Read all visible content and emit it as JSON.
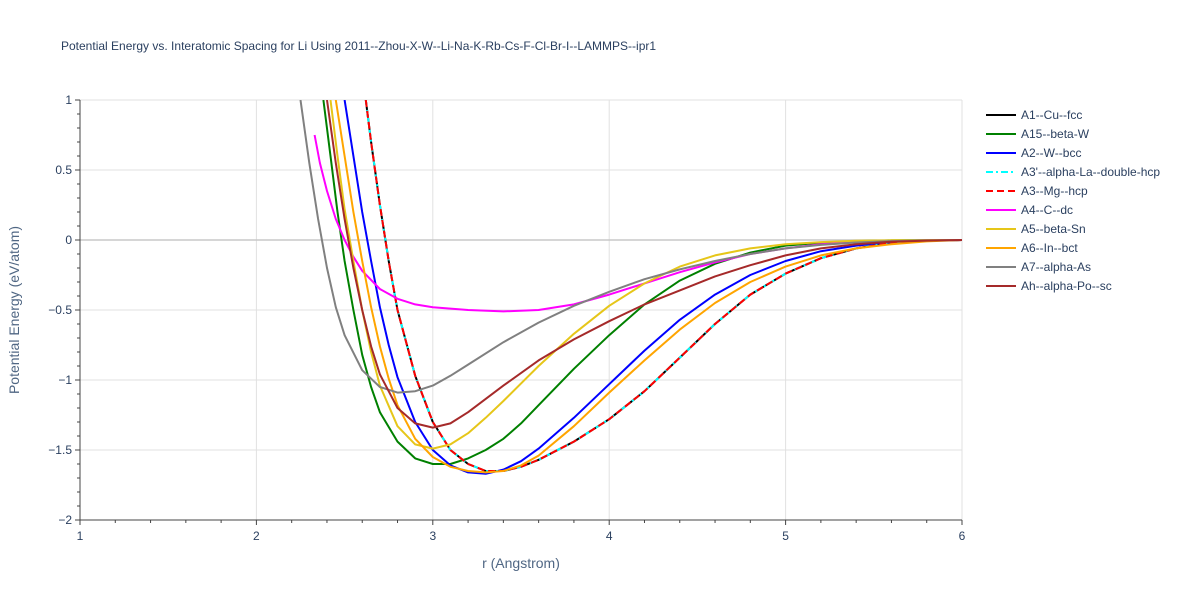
{
  "chart_data": {
    "type": "line",
    "title": "Potential Energy vs. Interatomic Spacing for Li Using 2011--Zhou-X-W--Li-Na-K-Rb-Cs-F-Cl-Br-I--LAMMPS--ipr1",
    "xlabel": "r (Angstrom)",
    "ylabel": "Potential Energy (eV/atom)",
    "xlim": [
      1,
      6
    ],
    "ylim": [
      -2,
      1
    ],
    "xticks": [
      1,
      2,
      3,
      4,
      5,
      6
    ],
    "yticks": [
      -2,
      -1.5,
      -1,
      -0.5,
      0,
      0.5,
      1
    ],
    "ytick_labels": [
      "−2",
      "−1.5",
      "−1",
      "−0.5",
      "0",
      "0.5",
      "1"
    ],
    "grid": true,
    "legend_position": "right",
    "series": [
      {
        "name": "A1--Cu--fcc",
        "color": "#000000",
        "dash": "solid",
        "x": [
          2.62,
          2.65,
          2.7,
          2.75,
          2.8,
          2.9,
          3.0,
          3.1,
          3.2,
          3.3,
          3.4,
          3.5,
          3.6,
          3.8,
          4.0,
          4.2,
          4.4,
          4.6,
          4.8,
          5.0,
          5.2,
          5.4,
          5.6,
          5.8,
          6.0
        ],
        "y": [
          1.0,
          0.7,
          0.25,
          -0.15,
          -0.5,
          -0.97,
          -1.3,
          -1.5,
          -1.6,
          -1.65,
          -1.65,
          -1.62,
          -1.57,
          -1.44,
          -1.28,
          -1.08,
          -0.84,
          -0.6,
          -0.39,
          -0.24,
          -0.13,
          -0.06,
          -0.02,
          -0.005,
          0.0
        ]
      },
      {
        "name": "A15--beta-W",
        "color": "#008000",
        "dash": "solid",
        "x": [
          2.38,
          2.42,
          2.46,
          2.5,
          2.55,
          2.6,
          2.65,
          2.7,
          2.8,
          2.9,
          3.0,
          3.1,
          3.2,
          3.3,
          3.4,
          3.5,
          3.6,
          3.8,
          4.0,
          4.2,
          4.4,
          4.6,
          4.8,
          5.0,
          5.2,
          5.4,
          5.6,
          5.8,
          6.0
        ],
        "y": [
          1.0,
          0.6,
          0.2,
          -0.15,
          -0.5,
          -0.82,
          -1.05,
          -1.23,
          -1.44,
          -1.56,
          -1.6,
          -1.6,
          -1.56,
          -1.5,
          -1.42,
          -1.31,
          -1.18,
          -0.92,
          -0.68,
          -0.46,
          -0.29,
          -0.17,
          -0.09,
          -0.04,
          -0.02,
          -0.008,
          -0.003,
          -0.001,
          0.0
        ]
      },
      {
        "name": "A2--W--bcc",
        "color": "#0000ff",
        "dash": "solid",
        "x": [
          2.5,
          2.55,
          2.6,
          2.65,
          2.7,
          2.75,
          2.8,
          2.9,
          3.0,
          3.1,
          3.2,
          3.3,
          3.4,
          3.5,
          3.6,
          3.8,
          4.0,
          4.2,
          4.4,
          4.6,
          4.8,
          5.0,
          5.2,
          5.4,
          5.6,
          5.8,
          6.0
        ],
        "y": [
          1.0,
          0.6,
          0.2,
          -0.15,
          -0.48,
          -0.75,
          -0.98,
          -1.3,
          -1.5,
          -1.61,
          -1.66,
          -1.67,
          -1.64,
          -1.58,
          -1.49,
          -1.27,
          -1.03,
          -0.79,
          -0.57,
          -0.39,
          -0.25,
          -0.15,
          -0.08,
          -0.04,
          -0.015,
          -0.005,
          0.0
        ]
      },
      {
        "name": "A3'--alpha-La--double-hcp",
        "color": "#00ffff",
        "dash": "dashdot",
        "x": [
          2.62,
          2.65,
          2.7,
          2.75,
          2.8,
          2.9,
          3.0,
          3.1,
          3.2,
          3.3,
          3.4,
          3.5,
          3.6,
          3.8,
          4.0,
          4.2,
          4.4,
          4.6,
          4.8,
          5.0,
          5.2,
          5.4,
          5.6,
          5.8,
          6.0
        ],
        "y": [
          1.0,
          0.7,
          0.25,
          -0.15,
          -0.5,
          -0.97,
          -1.3,
          -1.5,
          -1.6,
          -1.65,
          -1.65,
          -1.62,
          -1.57,
          -1.44,
          -1.28,
          -1.08,
          -0.84,
          -0.6,
          -0.39,
          -0.24,
          -0.13,
          -0.06,
          -0.02,
          -0.005,
          0.0
        ]
      },
      {
        "name": "A3--Mg--hcp",
        "color": "#ff0000",
        "dash": "dash",
        "x": [
          2.62,
          2.65,
          2.7,
          2.75,
          2.8,
          2.9,
          3.0,
          3.1,
          3.2,
          3.3,
          3.4,
          3.5,
          3.6,
          3.8,
          4.0,
          4.2,
          4.4,
          4.6,
          4.8,
          5.0,
          5.2,
          5.4,
          5.6,
          5.8,
          6.0
        ],
        "y": [
          1.0,
          0.7,
          0.25,
          -0.15,
          -0.5,
          -0.97,
          -1.3,
          -1.5,
          -1.6,
          -1.65,
          -1.65,
          -1.62,
          -1.57,
          -1.44,
          -1.28,
          -1.08,
          -0.84,
          -0.6,
          -0.39,
          -0.24,
          -0.13,
          -0.06,
          -0.02,
          -0.005,
          0.0
        ]
      },
      {
        "name": "A4--C--dc",
        "color": "#ff00ff",
        "dash": "solid",
        "x": [
          2.33,
          2.36,
          2.4,
          2.45,
          2.5,
          2.55,
          2.6,
          2.7,
          2.8,
          2.9,
          3.0,
          3.2,
          3.4,
          3.6,
          3.8,
          4.0,
          4.2,
          4.4,
          4.6,
          4.8,
          5.0,
          5.2,
          5.4,
          5.6,
          5.8,
          6.0
        ],
        "y": [
          0.75,
          0.55,
          0.35,
          0.15,
          0.0,
          -0.12,
          -0.22,
          -0.35,
          -0.42,
          -0.46,
          -0.48,
          -0.5,
          -0.51,
          -0.5,
          -0.46,
          -0.39,
          -0.31,
          -0.23,
          -0.16,
          -0.1,
          -0.06,
          -0.03,
          -0.015,
          -0.005,
          -0.002,
          0.0
        ]
      },
      {
        "name": "A5--beta-Sn",
        "color": "#e6c619",
        "dash": "solid",
        "x": [
          2.42,
          2.46,
          2.5,
          2.55,
          2.6,
          2.65,
          2.7,
          2.8,
          2.9,
          3.0,
          3.1,
          3.2,
          3.3,
          3.4,
          3.6,
          3.8,
          4.0,
          4.2,
          4.4,
          4.6,
          4.8,
          5.0,
          5.2,
          5.4,
          5.6,
          5.8,
          6.0
        ],
        "y": [
          1.0,
          0.6,
          0.22,
          -0.15,
          -0.5,
          -0.8,
          -1.04,
          -1.33,
          -1.46,
          -1.49,
          -1.46,
          -1.38,
          -1.27,
          -1.15,
          -0.9,
          -0.67,
          -0.47,
          -0.31,
          -0.19,
          -0.11,
          -0.06,
          -0.03,
          -0.015,
          -0.006,
          -0.002,
          -0.001,
          0.0
        ]
      },
      {
        "name": "A6--In--bct",
        "color": "#ffa500",
        "dash": "solid",
        "x": [
          2.45,
          2.5,
          2.55,
          2.6,
          2.65,
          2.7,
          2.75,
          2.8,
          2.9,
          3.0,
          3.1,
          3.2,
          3.3,
          3.4,
          3.5,
          3.6,
          3.8,
          4.0,
          4.2,
          4.4,
          4.6,
          4.8,
          5.0,
          5.2,
          5.4,
          5.6,
          5.8,
          6.0
        ],
        "y": [
          1.0,
          0.6,
          0.2,
          -0.15,
          -0.48,
          -0.76,
          -0.99,
          -1.18,
          -1.42,
          -1.55,
          -1.62,
          -1.65,
          -1.66,
          -1.65,
          -1.61,
          -1.54,
          -1.33,
          -1.09,
          -0.86,
          -0.64,
          -0.45,
          -0.3,
          -0.19,
          -0.11,
          -0.06,
          -0.03,
          -0.01,
          0.0
        ]
      },
      {
        "name": "A7--alpha-As",
        "color": "#808080",
        "dash": "solid",
        "x": [
          2.25,
          2.3,
          2.35,
          2.4,
          2.45,
          2.5,
          2.6,
          2.7,
          2.8,
          2.9,
          3.0,
          3.1,
          3.2,
          3.4,
          3.6,
          3.8,
          4.0,
          4.2,
          4.4,
          4.6,
          4.8,
          5.0,
          5.2,
          5.4,
          5.6,
          5.8,
          6.0
        ],
        "y": [
          1.0,
          0.55,
          0.15,
          -0.2,
          -0.48,
          -0.68,
          -0.93,
          -1.05,
          -1.09,
          -1.08,
          -1.04,
          -0.97,
          -0.89,
          -0.73,
          -0.59,
          -0.47,
          -0.37,
          -0.28,
          -0.21,
          -0.15,
          -0.1,
          -0.06,
          -0.035,
          -0.018,
          -0.008,
          -0.003,
          0.0
        ]
      },
      {
        "name": "Ah--alpha-Po--sc",
        "color": "#a52a2a",
        "dash": "solid",
        "x": [
          2.4,
          2.45,
          2.5,
          2.55,
          2.6,
          2.65,
          2.7,
          2.8,
          2.9,
          3.0,
          3.1,
          3.2,
          3.4,
          3.6,
          3.8,
          4.0,
          4.2,
          4.4,
          4.6,
          4.8,
          5.0,
          5.2,
          5.4,
          5.6,
          5.8,
          6.0
        ],
        "y": [
          1.0,
          0.55,
          0.15,
          -0.2,
          -0.5,
          -0.76,
          -0.96,
          -1.2,
          -1.31,
          -1.34,
          -1.31,
          -1.23,
          -1.04,
          -0.86,
          -0.71,
          -0.58,
          -0.46,
          -0.36,
          -0.26,
          -0.18,
          -0.11,
          -0.06,
          -0.03,
          -0.012,
          -0.004,
          0.0
        ]
      }
    ]
  }
}
